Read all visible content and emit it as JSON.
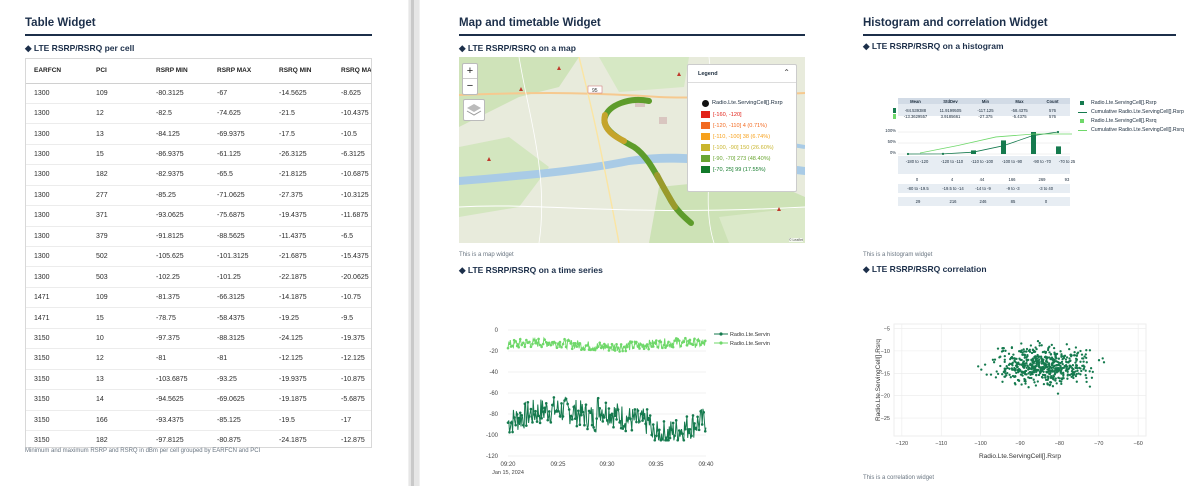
{
  "table_widget": {
    "title": "Table Widget",
    "subtitle": "◆ LTE RSRP/RSRQ per cell",
    "columns": [
      "EARFCN",
      "PCI",
      "RSRP MIN",
      "RSRP MAX",
      "RSRQ MIN",
      "RSRQ MAX"
    ],
    "rows": [
      [
        "1300",
        "109",
        "-80.3125",
        "-67",
        "-14.5625",
        "-8.625"
      ],
      [
        "1300",
        "12",
        "-82.5",
        "-74.625",
        "-21.5",
        "-10.4375"
      ],
      [
        "1300",
        "13",
        "-84.125",
        "-69.9375",
        "-17.5",
        "-10.5"
      ],
      [
        "1300",
        "15",
        "-86.9375",
        "-61.125",
        "-26.3125",
        "-6.3125"
      ],
      [
        "1300",
        "182",
        "-82.9375",
        "-65.5",
        "-21.8125",
        "-10.6875"
      ],
      [
        "1300",
        "277",
        "-85.25",
        "-71.0625",
        "-27.375",
        "-10.3125"
      ],
      [
        "1300",
        "371",
        "-93.0625",
        "-75.6875",
        "-19.4375",
        "-11.6875"
      ],
      [
        "1300",
        "379",
        "-91.8125",
        "-88.5625",
        "-11.4375",
        "-6.5"
      ],
      [
        "1300",
        "502",
        "-105.625",
        "-101.3125",
        "-21.6875",
        "-15.4375"
      ],
      [
        "1300",
        "503",
        "-102.25",
        "-101.25",
        "-22.1875",
        "-20.0625"
      ],
      [
        "1471",
        "109",
        "-81.375",
        "-66.3125",
        "-14.1875",
        "-10.75"
      ],
      [
        "1471",
        "15",
        "-78.75",
        "-58.4375",
        "-19.25",
        "-9.5"
      ],
      [
        "3150",
        "10",
        "-97.375",
        "-88.3125",
        "-24.125",
        "-19.375"
      ],
      [
        "3150",
        "12",
        "-81",
        "-81",
        "-12.125",
        "-12.125"
      ],
      [
        "3150",
        "13",
        "-103.6875",
        "-93.25",
        "-19.9375",
        "-10.875"
      ],
      [
        "3150",
        "14",
        "-94.5625",
        "-69.0625",
        "-19.1875",
        "-5.6875"
      ],
      [
        "3150",
        "166",
        "-93.4375",
        "-85.125",
        "-19.5",
        "-17"
      ],
      [
        "3150",
        "182",
        "-97.8125",
        "-80.875",
        "-24.1875",
        "-12.875"
      ]
    ],
    "note": "Minimum and maximum RSRP and RSRQ in dBm per cell grouped by EARFCN and PCI"
  },
  "map_widget": {
    "title": "Map and timetable Widget",
    "map_subtitle": "◆ LTE RSRP/RSRQ on a map",
    "zoom_in": "+",
    "zoom_out": "−",
    "legend_title": "Legend",
    "legend_series": "Radio.Lte.ServingCell[].Rsrp",
    "legend_items": [
      {
        "label": "[-160, -120]",
        "color": "#e2231a"
      },
      {
        "label": "[-120, -110]   4 (0.71%)",
        "color": "#f26a21"
      },
      {
        "label": "[-110, -100]   38 (6.74%)",
        "color": "#f7a11c"
      },
      {
        "label": "[-100, -90]   150 (26.60%)",
        "color": "#c9b52d"
      },
      {
        "label": "[-90, -70]   273 (48.40%)",
        "color": "#6aa632"
      },
      {
        "label": "[-70, 25]   99 (17.55%)",
        "color": "#127a2a"
      }
    ],
    "road_label": "95",
    "attribution": "© Leaflet",
    "map_note": "This is a map widget",
    "ts_subtitle": "◆ LTE RSRP/RSRQ on a time series"
  },
  "hist_widget": {
    "title": "Histogram and correlation Widget",
    "hist_subtitle": "◆ LTE RSRP/RSRQ on a histogram",
    "stats_headers": [
      "Mean",
      "StdDev",
      "Min",
      "Max",
      "Count"
    ],
    "stats_rows": [
      [
        "-84.539388",
        "11.9199505",
        "-117.125",
        "-58.4375",
        "576"
      ],
      [
        "-13.3629557",
        "3.9185661",
        "-27.375",
        "-5.4375",
        "576"
      ]
    ],
    "rsrp_bins": [
      "-180 to -120",
      "-120 to -110",
      "-110 to -100",
      "-100 to -90",
      "-90 to -70",
      "-70 to 25"
    ],
    "rsrp_counts": [
      "0",
      "4",
      "44",
      "166",
      "269",
      "93"
    ],
    "rsrq_bins": [
      "-80 to -19.5",
      "-19.5 to -14",
      "-14 to -9",
      "-9 to -3",
      "-3 to 40"
    ],
    "rsrq_counts": [
      "29",
      "216",
      "246",
      "85",
      "0"
    ],
    "pct_ticks": [
      "100%",
      "50%",
      "0%"
    ],
    "hist_legend": [
      "Radio.Lte.ServingCell[].Rsrp",
      "Cumulative Radio.Lte.ServingCell[].Rsrp",
      "Radio.Lte.ServingCell[].Rsrq",
      "Cumulative Radio.Lte.ServingCell[].Rsrq"
    ],
    "hist_note": "This is a histogram widget",
    "corr_subtitle": "◆ LTE RSRP/RSRQ correlation",
    "corr_note": "This is a correlation widget"
  },
  "colors": {
    "rsrp": "#157a4e",
    "rsrq": "#6fd86a",
    "title": "#1c2f4a"
  },
  "chart_data": [
    {
      "type": "line",
      "title": "",
      "x_ticks": [
        "09:20\nJan 15, 2024",
        "09:25",
        "09:30",
        "09:35",
        "09:40"
      ],
      "y_ticks": [
        "0",
        "-20",
        "-40",
        "-60",
        "-80",
        "-100",
        "-120"
      ],
      "ylim": [
        -120,
        0
      ],
      "x_range_minutes": [
        0,
        20
      ],
      "series": [
        {
          "name": "Radio.Lte.ServingCell[].Rsrp",
          "approx_range": [
            -105,
            -60
          ],
          "mean": -84.5
        },
        {
          "name": "Radio.Lte.ServingCell[].Rsrq",
          "approx_range": [
            -22,
            -7
          ],
          "mean": -13.4
        }
      ]
    },
    {
      "type": "scatter",
      "xlabel": "Radio.Lte.ServingCell[].Rsrp",
      "ylabel": "Radio.Lte.ServingCell[].Rsrq",
      "x_ticks": [
        "−120",
        "−110",
        "−100",
        "−90",
        "−80",
        "−70",
        "−60"
      ],
      "y_ticks": [
        "−5",
        "−10",
        "−15",
        "−20",
        "−25"
      ],
      "xlim": [
        -122,
        -58
      ],
      "ylim": [
        -29,
        -4
      ]
    }
  ]
}
